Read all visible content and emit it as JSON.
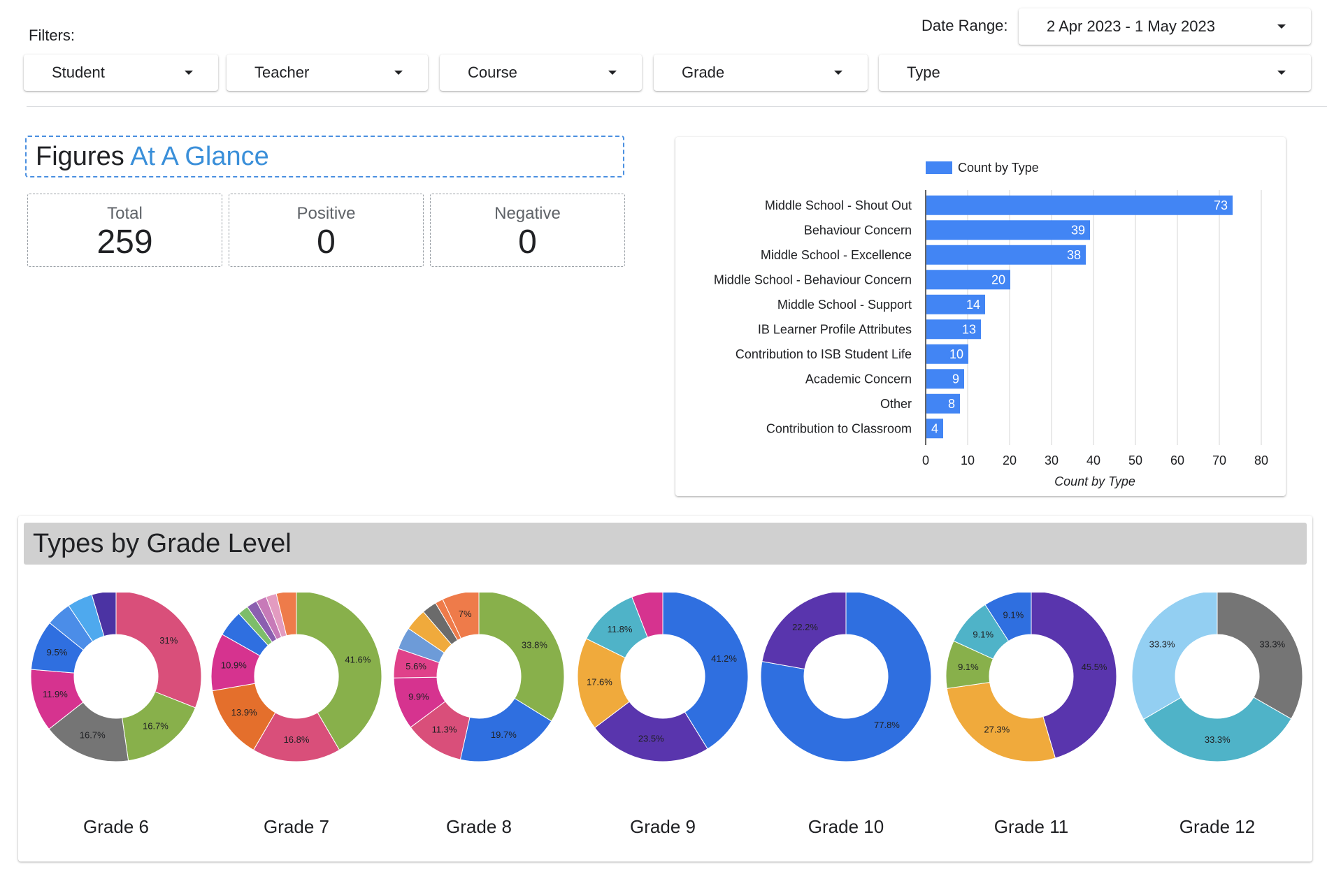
{
  "filters": {
    "label": "Filters:",
    "dropdowns": [
      "Student",
      "Teacher",
      "Course",
      "Grade",
      "Type"
    ]
  },
  "date_range": {
    "label": "Date Range:",
    "value": "2 Apr 2023 - 1 May 2023"
  },
  "glance": {
    "title_main": "Figures",
    "title_accent": "At A Glance",
    "stats": [
      {
        "label": "Total",
        "value": "259"
      },
      {
        "label": "Positive",
        "value": "0"
      },
      {
        "label": "Negative",
        "value": "0"
      }
    ]
  },
  "colors": {
    "bar": "#4285f4",
    "accent": "#3a8fd9"
  },
  "chart_data": [
    {
      "type": "bar",
      "orientation": "horizontal",
      "legend": "Count by Type",
      "legend_position": "top",
      "xlabel": "Count by Type",
      "xlim": [
        0,
        80
      ],
      "xticks": [
        0,
        10,
        20,
        30,
        40,
        50,
        60,
        70,
        80
      ],
      "grid": true,
      "categories": [
        "Middle School - Shout Out",
        "Behaviour Concern",
        "Middle School - Excellence",
        "Middle School - Behaviour Concern",
        "Middle School - Support",
        "IB Learner Profile Attributes",
        "Contribution to ISB Student Life",
        "Academic Concern",
        "Other",
        "Contribution to Classroom"
      ],
      "values": [
        73,
        39,
        38,
        20,
        14,
        13,
        10,
        9,
        8,
        4
      ]
    },
    {
      "type": "pie",
      "title": "Types by Grade Level",
      "donuts": [
        {
          "label": "Grade 6",
          "slices": [
            {
              "value": 31,
              "text": "31%",
              "color": "#d94f7a"
            },
            {
              "value": 16.7,
              "text": "16.7%",
              "color": "#88b04b"
            },
            {
              "value": 16.7,
              "text": "16.7%",
              "color": "#757575"
            },
            {
              "value": 11.9,
              "text": "11.9%",
              "color": "#d6338f"
            },
            {
              "value": 9.5,
              "text": "9.5%",
              "color": "#2f6fe0"
            },
            {
              "value": 4.8,
              "text": "",
              "color": "#4b8de8"
            },
            {
              "value": 4.8,
              "text": "",
              "color": "#4ea9ee"
            },
            {
              "value": 4.6,
              "text": "",
              "color": "#4b33a3"
            }
          ]
        },
        {
          "label": "Grade 7",
          "slices": [
            {
              "value": 41.6,
              "text": "41.6%",
              "color": "#88b04b"
            },
            {
              "value": 16.8,
              "text": "16.8%",
              "color": "#d94f7a"
            },
            {
              "value": 13.9,
              "text": "13.9%",
              "color": "#e46f2c"
            },
            {
              "value": 10.9,
              "text": "10.9%",
              "color": "#d6338f"
            },
            {
              "value": 5,
              "text": "",
              "color": "#2f6fe0"
            },
            {
              "value": 2,
              "text": "",
              "color": "#7dbd6a"
            },
            {
              "value": 2,
              "text": "",
              "color": "#8b5fb0"
            },
            {
              "value": 2,
              "text": "",
              "color": "#c77ab8"
            },
            {
              "value": 2,
              "text": "",
              "color": "#e39bc0"
            },
            {
              "value": 3.8,
              "text": "",
              "color": "#ee7b4a"
            }
          ]
        },
        {
          "label": "Grade 8",
          "slices": [
            {
              "value": 33.8,
              "text": "33.8%",
              "color": "#88b04b"
            },
            {
              "value": 19.7,
              "text": "19.7%",
              "color": "#2f6fe0"
            },
            {
              "value": 11.3,
              "text": "11.3%",
              "color": "#d94f7a"
            },
            {
              "value": 9.9,
              "text": "9.9%",
              "color": "#d6338f"
            },
            {
              "value": 5.6,
              "text": "5.6%",
              "color": "#e0418a"
            },
            {
              "value": 4.2,
              "text": "",
              "color": "#6d9bd8"
            },
            {
              "value": 4.2,
              "text": "",
              "color": "#f0aa3c"
            },
            {
              "value": 2.8,
              "text": "",
              "color": "#6b6b6b"
            },
            {
              "value": 1.5,
              "text": "",
              "color": "#ee7b4a"
            },
            {
              "value": 7,
              "text": "7%",
              "color": "#ee7b4a"
            }
          ]
        },
        {
          "label": "Grade 9",
          "slices": [
            {
              "value": 41.2,
              "text": "41.2%",
              "color": "#2f6fe0"
            },
            {
              "value": 23.5,
              "text": "23.5%",
              "color": "#5935ad"
            },
            {
              "value": 17.6,
              "text": "17.6%",
              "color": "#f0aa3c"
            },
            {
              "value": 11.8,
              "text": "11.8%",
              "color": "#4fb3c8"
            },
            {
              "value": 5.9,
              "text": "",
              "color": "#d6338f"
            }
          ]
        },
        {
          "label": "Grade 10",
          "slices": [
            {
              "value": 77.8,
              "text": "77.8%",
              "color": "#2f6fe0"
            },
            {
              "value": 22.2,
              "text": "22.2%",
              "color": "#5935ad"
            }
          ]
        },
        {
          "label": "Grade 11",
          "slices": [
            {
              "value": 45.5,
              "text": "45.5%",
              "color": "#5935ad"
            },
            {
              "value": 27.3,
              "text": "27.3%",
              "color": "#f0aa3c"
            },
            {
              "value": 9.1,
              "text": "9.1%",
              "color": "#88b04b"
            },
            {
              "value": 9.1,
              "text": "9.1%",
              "color": "#4fb3c8"
            },
            {
              "value": 9.1,
              "text": "9.1%",
              "color": "#2f6fe0"
            }
          ]
        },
        {
          "label": "Grade 12",
          "slices": [
            {
              "value": 33.3,
              "text": "33.3%",
              "color": "#757575"
            },
            {
              "value": 33.3,
              "text": "33.3%",
              "color": "#4fb3c8"
            },
            {
              "value": 33.4,
              "text": "33.3%",
              "color": "#93cff2"
            }
          ]
        }
      ]
    }
  ]
}
